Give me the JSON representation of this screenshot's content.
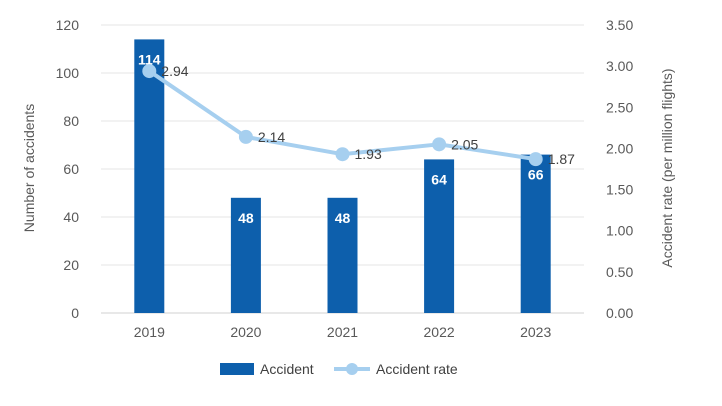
{
  "chart_data": {
    "type": "bar+line",
    "categories": [
      "2019",
      "2020",
      "2021",
      "2022",
      "2023"
    ],
    "series": [
      {
        "name": "Accident",
        "type": "bar",
        "axis": "left",
        "values": [
          114,
          48,
          48,
          64,
          66
        ],
        "color": "#0d5fac"
      },
      {
        "name": "Accident rate",
        "type": "line",
        "axis": "right",
        "values": [
          2.94,
          2.14,
          1.93,
          2.05,
          1.87
        ],
        "color": "#a6cfef"
      }
    ],
    "bar_labels": [
      "114",
      "48",
      "48",
      "64",
      "66"
    ],
    "line_labels": [
      "2.94",
      "2.14",
      "1.93",
      "2.05",
      "1.87"
    ],
    "left_axis": {
      "title": "Number of accidents",
      "ylim": [
        0,
        120
      ],
      "ticks": [
        "0",
        "20",
        "40",
        "60",
        "80",
        "100",
        "120"
      ]
    },
    "right_axis": {
      "title": "Accident rate (per million flights)",
      "ylim": [
        0,
        3.5
      ],
      "ticks": [
        "0.00",
        "0.50",
        "1.00",
        "1.50",
        "2.00",
        "2.50",
        "3.00",
        "3.50"
      ]
    },
    "grid": true,
    "legend": {
      "position": "bottom",
      "items": [
        "Accident",
        "Accident rate"
      ]
    }
  }
}
